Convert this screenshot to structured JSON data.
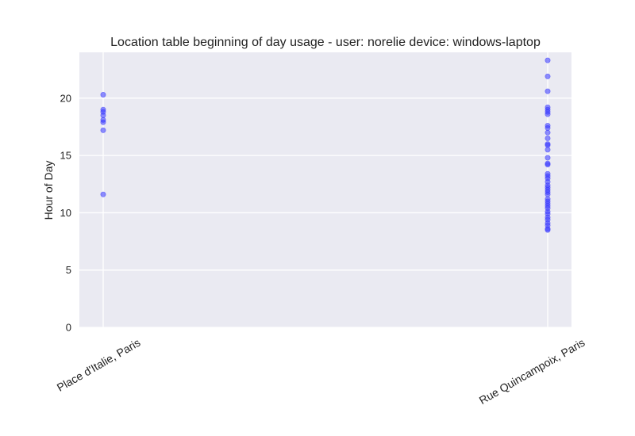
{
  "chart_data": {
    "type": "scatter",
    "title": "Location table beginning of day usage -  user: norelie device: windows-laptop",
    "xlabel": "",
    "ylabel": "Hour of Day",
    "categories": [
      "Place d'Italie, Paris",
      "Rue Quincampoix, Paris"
    ],
    "ylim": [
      0,
      24
    ],
    "yticks": [
      0,
      5,
      10,
      15,
      20
    ],
    "grid": true,
    "series": [
      {
        "category": "Place d'Italie, Paris",
        "values": [
          20.3,
          19.0,
          18.8,
          18.5,
          18.1,
          17.9,
          17.2,
          11.6
        ]
      },
      {
        "category": "Rue Quincampoix, Paris",
        "values": [
          23.3,
          21.9,
          20.6,
          19.2,
          19.0,
          18.8,
          18.6,
          17.6,
          17.4,
          17.0,
          16.5,
          16.0,
          15.9,
          15.5,
          14.8,
          14.3,
          14.2,
          13.4,
          13.2,
          13.0,
          12.7,
          12.4,
          12.2,
          12.0,
          11.8,
          11.6,
          11.2,
          11.0,
          10.8,
          10.6,
          10.4,
          10.1,
          9.9,
          9.6,
          9.4,
          9.1,
          8.9,
          8.6,
          8.5
        ]
      }
    ],
    "colors": {
      "point": "#3333ff",
      "plot_bg": "#eaeaf2",
      "grid": "#ffffff"
    }
  }
}
